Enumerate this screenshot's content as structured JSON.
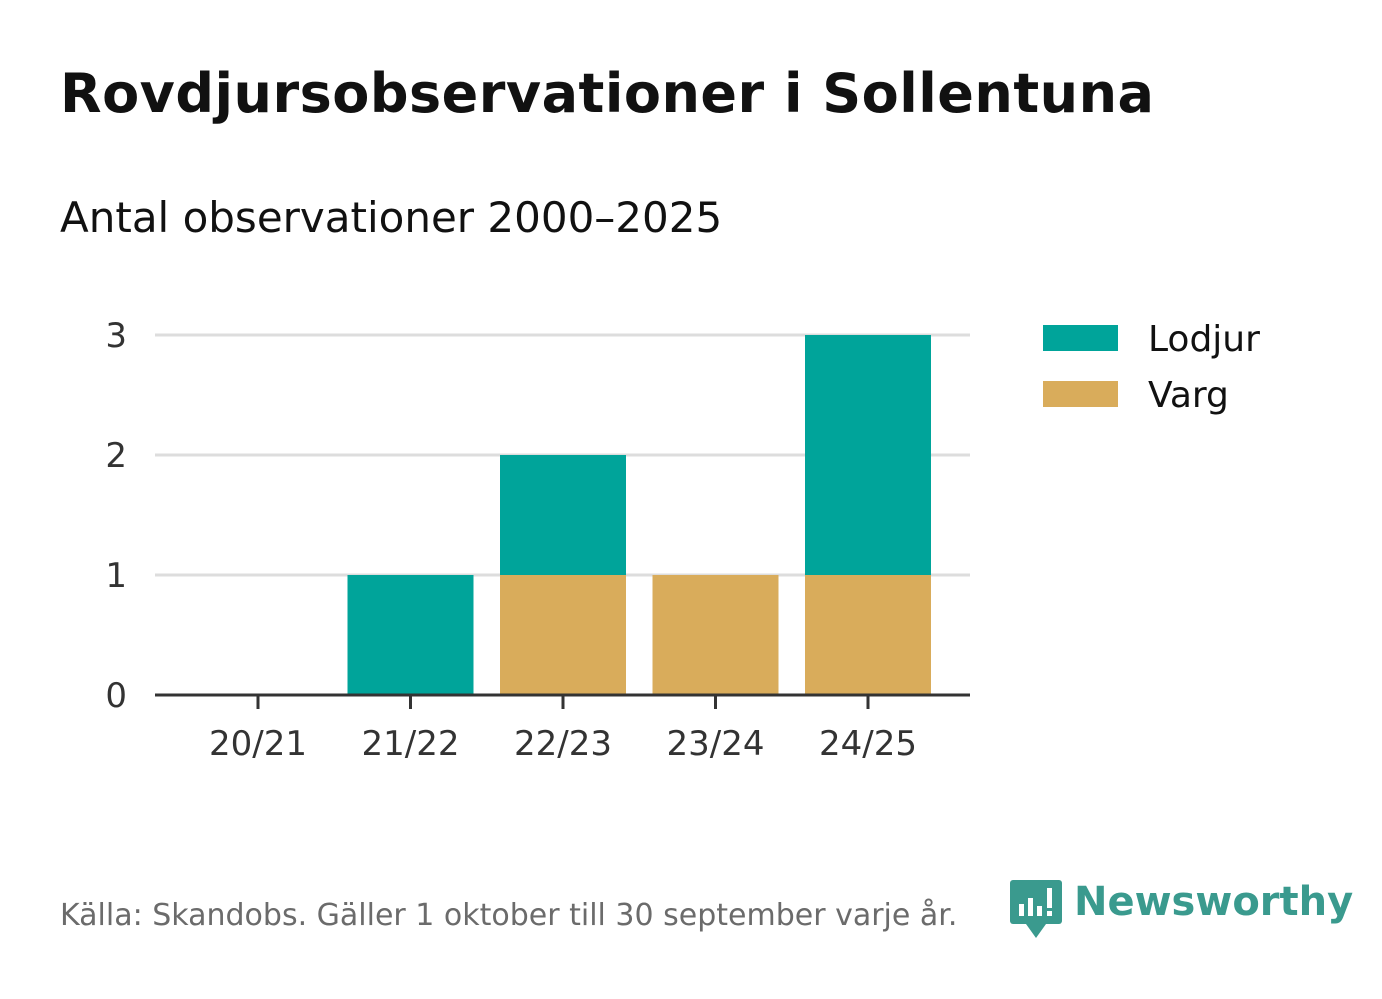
{
  "title": "Rovdjursobservationer i Sollentuna",
  "subtitle": "Antal observationer 2000–2025",
  "footer": {
    "source": "Källa: Skandobs. Gäller 1 oktober till 30 september varje år.",
    "brand": "Newsworthy",
    "brand_icon": "newsworthy-logo-icon",
    "brand_color": "#3a9a8e"
  },
  "chart_data": {
    "type": "bar",
    "stacked": true,
    "categories": [
      "20/21",
      "21/22",
      "22/23",
      "23/24",
      "24/25"
    ],
    "series": [
      {
        "name": "Varg",
        "color": "#d9ac5b",
        "values": [
          0,
          0,
          1,
          1,
          1
        ]
      },
      {
        "name": "Lodjur",
        "color": "#00a49a",
        "values": [
          0,
          1,
          1,
          0,
          2
        ]
      }
    ],
    "legend_order": [
      "Lodjur",
      "Varg"
    ],
    "legend_position": "right",
    "ylim": [
      0,
      3
    ],
    "yticks": [
      0,
      1,
      2,
      3
    ],
    "grid": true,
    "xlabel": "",
    "ylabel": ""
  }
}
